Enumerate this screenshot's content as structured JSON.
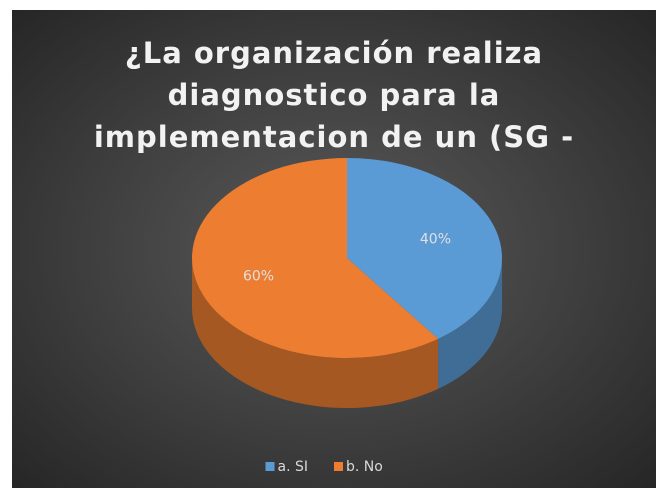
{
  "chart_data": {
    "type": "pie",
    "title": "¿La organización realiza diagnostico para la implementacion de un (SG - SST)?",
    "categories": [
      "a. SI",
      "b. No"
    ],
    "values": [
      40,
      60
    ],
    "value_labels": [
      "40%",
      "60%"
    ],
    "colors": [
      "#5b9bd5",
      "#ed7d31"
    ],
    "legend": "bottom"
  }
}
